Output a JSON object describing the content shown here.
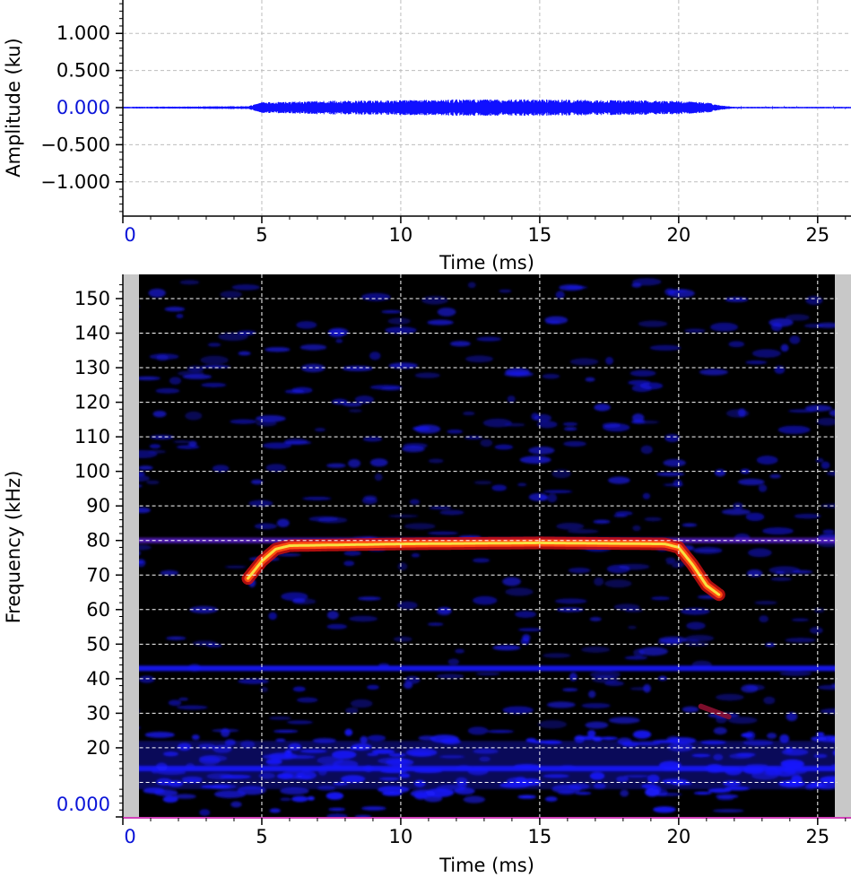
{
  "chart_data": [
    {
      "type": "line",
      "xlabel": "Time (ms)",
      "ylabel": "Amplitude (ku)",
      "xlim": [
        0,
        26.2
      ],
      "ylim": [
        -1.45,
        1.45
      ],
      "x_ticks": [
        0,
        5,
        10,
        15,
        20,
        25
      ],
      "x_tick_labels": [
        "0",
        "5",
        "10",
        "15",
        "20",
        "25"
      ],
      "y_ticks": [
        1.0,
        0.5,
        0.0,
        -0.5,
        -1.0
      ],
      "y_tick_labels": [
        "1.000",
        "0.500",
        "0.000",
        "−0.500",
        "−1.000"
      ],
      "grid": true,
      "series": [
        {
          "color": "#1010ff",
          "envelope_x": [
            0,
            4.5,
            5,
            7,
            10,
            12,
            15,
            18,
            20,
            21,
            21.5,
            22,
            26.2
          ],
          "envelope_amp": [
            0.01,
            0.02,
            0.07,
            0.09,
            0.1,
            0.11,
            0.11,
            0.1,
            0.09,
            0.07,
            0.03,
            0.01,
            0.01
          ]
        }
      ]
    },
    {
      "type": "heatmap",
      "xlabel": "Time (ms)",
      "ylabel": "Frequency (kHz)",
      "xlim": [
        0,
        26.2
      ],
      "ylim": [
        0,
        157
      ],
      "x_ticks": [
        0,
        5,
        10,
        15,
        20,
        25
      ],
      "x_tick_labels": [
        "0",
        "5",
        "10",
        "15",
        "20",
        "25"
      ],
      "y_ticks": [
        20,
        30,
        40,
        50,
        60,
        70,
        80,
        90,
        100,
        110,
        120,
        130,
        140,
        150,
        0
      ],
      "y_tick_labels": [
        "20",
        "30",
        "40",
        "50",
        "60",
        "70",
        "80",
        "90",
        "100",
        "110",
        "120",
        "130",
        "140",
        "150",
        "0.000"
      ],
      "grid": true,
      "colors": {
        "background": "#000000",
        "noise": "#1a1aff",
        "ridge_outer": "#cc1010",
        "ridge_mid": "#ff4a10",
        "ridge_core": "#f7e040",
        "margin": "#c8c8c8"
      },
      "call": {
        "time": [
          4.5,
          5.0,
          5.5,
          6.0,
          10,
          15,
          19.5,
          20.0,
          20.5,
          21.0,
          21.5
        ],
        "frequency": [
          69,
          74,
          77.5,
          78.5,
          79,
          79.3,
          79,
          78,
          73,
          67,
          64
        ]
      },
      "harmonic_fragment": {
        "time": [
          20.8,
          21.8
        ],
        "frequency": [
          32,
          29
        ]
      },
      "constant_bands_khz": [
        80,
        43,
        14
      ]
    }
  ]
}
